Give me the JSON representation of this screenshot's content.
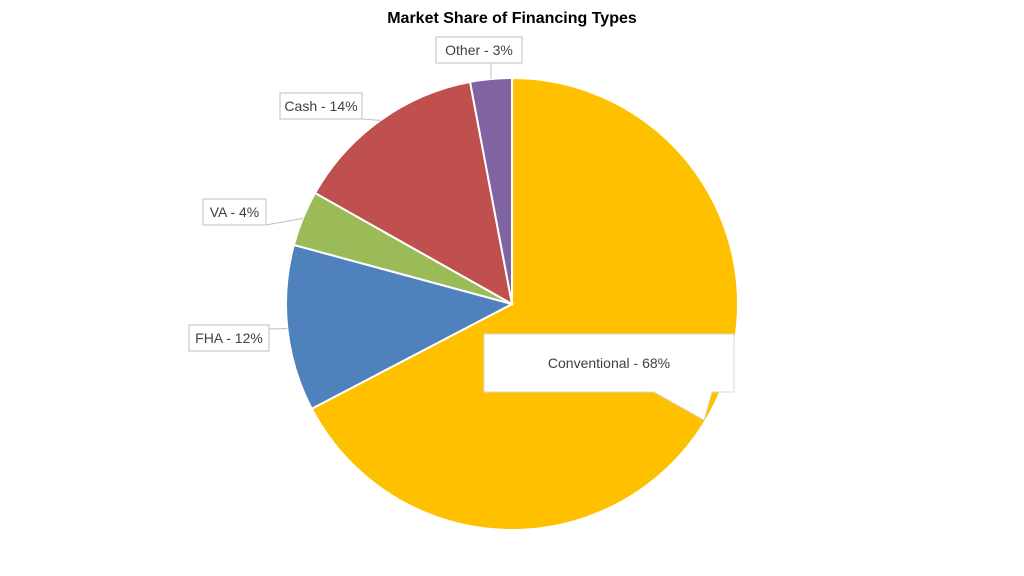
{
  "chart_data": {
    "type": "pie",
    "title": "Market Share of Financing Types",
    "slices": [
      {
        "label": "Conventional - 68%",
        "name": "Conventional",
        "value": 68,
        "color": "#FFC000"
      },
      {
        "label": "FHA - 12%",
        "name": "FHA",
        "value": 12,
        "color": "#4F81BD"
      },
      {
        "label": "VA - 4%",
        "name": "VA",
        "value": 4,
        "color": "#9BBB59"
      },
      {
        "label": "Cash - 14%",
        "name": "Cash",
        "value": 14,
        "color": "#C0504D"
      },
      {
        "label": "Other - 3%",
        "name": "Other",
        "value": 3,
        "color": "#8064A2"
      }
    ],
    "start": "12 o'clock",
    "direction": "clockwise",
    "legend": "none"
  }
}
